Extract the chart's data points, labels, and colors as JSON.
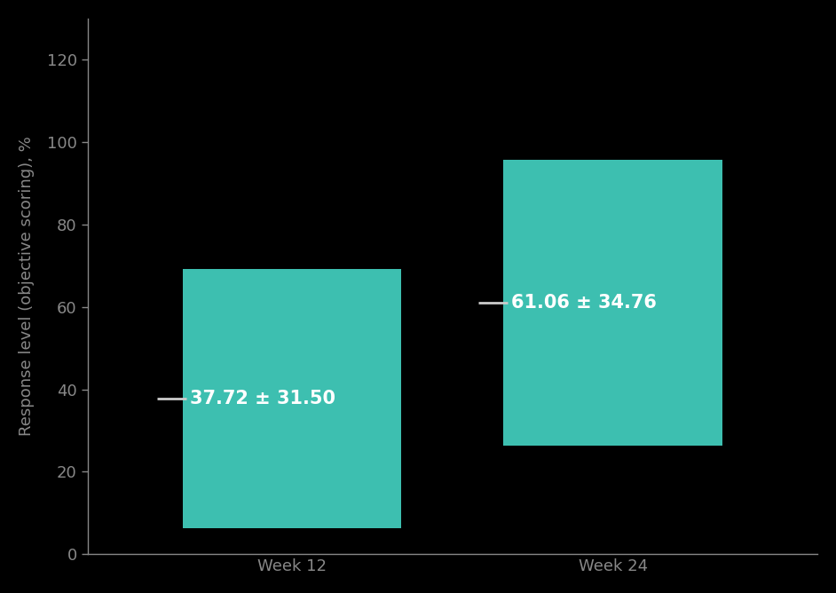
{
  "categories": [
    "Week 12",
    "Week 24"
  ],
  "means": [
    37.72,
    61.06
  ],
  "sds": [
    31.5,
    34.76
  ],
  "bar_bottoms": [
    6.22,
    26.3
  ],
  "bar_tops": [
    69.22,
    95.82
  ],
  "labels": [
    "37.72 ± 31.50",
    "61.06 ± 34.76"
  ],
  "bar_color": "#3DBFB0",
  "background_color": "#000000",
  "text_color": "#ffffff",
  "axis_color": "#888888",
  "tick_line_color": "#cccccc",
  "ylabel": "Response level (objective scoring), %",
  "ylim": [
    0,
    130
  ],
  "yticks": [
    0,
    20,
    40,
    60,
    80,
    100,
    120
  ],
  "label_fontsize": 15,
  "tick_fontsize": 13,
  "ylabel_fontsize": 13,
  "xlabel_fontsize": 13,
  "x_positions": [
    0.28,
    0.72
  ],
  "bar_width": 0.3
}
